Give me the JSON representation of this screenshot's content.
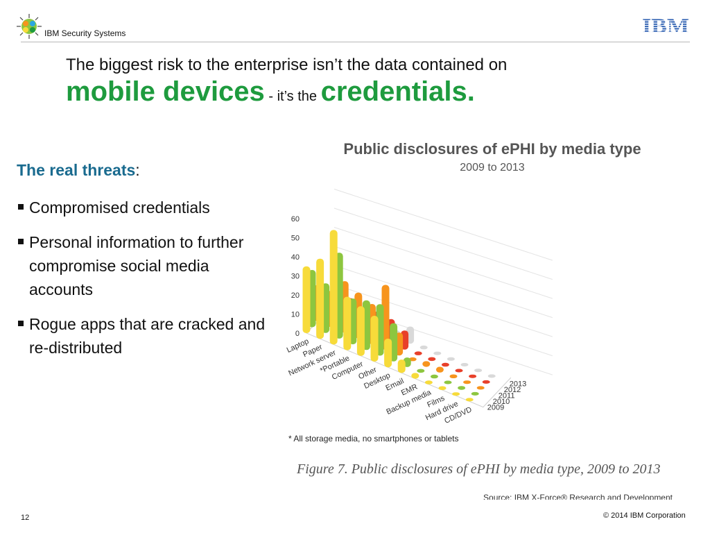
{
  "header": {
    "brand": "IBM Security Systems",
    "logo_icon": "ibm-security-flower-icon",
    "ibm_logo": "ibm-logo-icon"
  },
  "title": {
    "line1": "The biggest risk to the enterprise isn’t the data contained on",
    "part1": "mobile devices",
    "connector": " - it’s the ",
    "part2": "credentials."
  },
  "threats": {
    "label": "The real threats",
    "colon": ":",
    "items": [
      "Compromised credentials",
      "Personal information to further compromise social media accounts",
      "Rogue apps that are cracked and re-distributed"
    ]
  },
  "chart_data": {
    "type": "bar",
    "title": "Public disclosures of ePHI by media type",
    "subtitle": "2009 to 2013",
    "categories": [
      "Laptop",
      "Paper",
      "Network server",
      "*Portable",
      "Computer",
      "Other",
      "Desktop",
      "Email",
      "EMR",
      "Backup media",
      "Films",
      "Hard drive",
      "CD/DVD"
    ],
    "series": [
      {
        "name": "2009",
        "values": [
          35,
          42,
          60,
          28,
          26,
          24,
          15,
          7,
          3,
          2,
          2,
          1,
          1
        ]
      },
      {
        "name": "2010",
        "values": [
          30,
          26,
          45,
          24,
          26,
          27,
          20,
          5,
          2,
          2,
          1,
          2,
          1
        ]
      },
      {
        "name": "2011",
        "values": [
          19,
          19,
          27,
          24,
          21,
          34,
          12,
          2,
          3,
          3,
          2,
          1,
          1
        ]
      },
      {
        "name": "2012",
        "values": [
          14,
          12,
          15,
          13,
          14,
          13,
          10,
          2,
          2,
          2,
          1,
          1,
          1
        ]
      },
      {
        "name": "2013",
        "values": [
          4,
          11,
          8,
          2,
          5,
          4,
          9,
          2,
          1,
          1,
          1,
          1,
          1
        ]
      }
    ],
    "series_colors": [
      "#f7db3a",
      "#8dc63f",
      "#f7941d",
      "#e8402a",
      "#d9d9d9"
    ],
    "y_ticks": [
      "0",
      "10",
      "20",
      "30",
      "40",
      "50",
      "60"
    ],
    "ylim": [
      0,
      60
    ],
    "footnote": "* All storage media, no smartphones or tablets",
    "caption": "Figure 7. Public disclosures of ePHI by media type, 2009 to 2013",
    "source": "Source: IBM X-Force® Research and Development"
  },
  "footer": {
    "page": "12",
    "copyright": "© 2014 IBM Corporation"
  }
}
